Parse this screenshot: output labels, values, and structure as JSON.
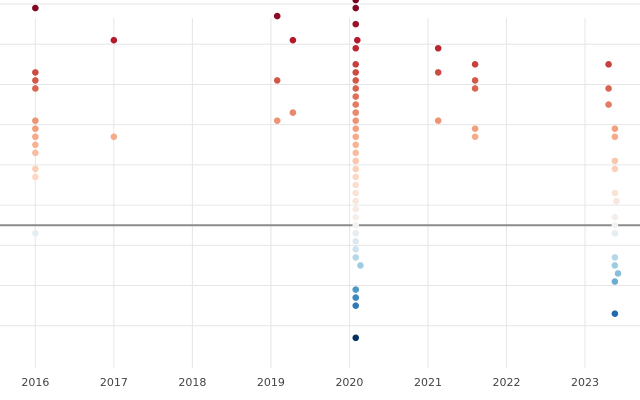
{
  "chart_data": {
    "type": "scatter",
    "title": "",
    "xlabel": "",
    "ylabel": "",
    "xlim": [
      2015.55,
      2023.7
    ],
    "ylim": [
      -3.6,
      5.6
    ],
    "x_ticks": [
      2016,
      2017,
      2018,
      2019,
      2020,
      2021,
      2022,
      2023
    ],
    "x_tick_labels": [
      "2016",
      "2017",
      "2018",
      "2019",
      "2020",
      "2021",
      "2022",
      "2023"
    ],
    "y_gridlines": [
      -2.5,
      -1.5,
      -0.5,
      0.5,
      1.5,
      2.5,
      3.5,
      4.5,
      5.5
    ],
    "reference_line_y": 0,
    "grid": true,
    "legend": "none",
    "color_scale": {
      "type": "diverging",
      "domain": [
        -2.8,
        0,
        5.8
      ],
      "negative_colors": [
        "#f2f2f2",
        "#d1e5f0",
        "#92c5de",
        "#4393c3",
        "#2166ac",
        "#053061"
      ],
      "positive_colors": [
        "#f2f2f2",
        "#fddbc7",
        "#f4a582",
        "#d6604d",
        "#b2182b",
        "#67001f"
      ]
    },
    "points": [
      {
        "x": 2016.0,
        "y": 5.8
      },
      {
        "x": 2016.0,
        "y": 5.4
      },
      {
        "x": 2016.0,
        "y": 3.8
      },
      {
        "x": 2016.0,
        "y": 3.6
      },
      {
        "x": 2016.0,
        "y": 3.4
      },
      {
        "x": 2016.0,
        "y": 2.6
      },
      {
        "x": 2016.0,
        "y": 2.4
      },
      {
        "x": 2016.0,
        "y": 2.2
      },
      {
        "x": 2016.0,
        "y": 2.0
      },
      {
        "x": 2016.0,
        "y": 1.8
      },
      {
        "x": 2016.0,
        "y": 1.4
      },
      {
        "x": 2016.0,
        "y": 1.2
      },
      {
        "x": 2016.0,
        "y": -0.2
      },
      {
        "x": 2017.0,
        "y": 4.6
      },
      {
        "x": 2017.0,
        "y": 2.2
      },
      {
        "x": 2019.08,
        "y": 5.2
      },
      {
        "x": 2019.08,
        "y": 3.6
      },
      {
        "x": 2019.08,
        "y": 2.6
      },
      {
        "x": 2019.28,
        "y": 4.6
      },
      {
        "x": 2019.28,
        "y": 2.8
      },
      {
        "x": 2020.08,
        "y": 5.6
      },
      {
        "x": 2020.08,
        "y": 5.4
      },
      {
        "x": 2020.08,
        "y": 5.0
      },
      {
        "x": 2020.1,
        "y": 4.6
      },
      {
        "x": 2020.08,
        "y": 4.4
      },
      {
        "x": 2020.08,
        "y": 4.0
      },
      {
        "x": 2020.08,
        "y": 3.8
      },
      {
        "x": 2020.08,
        "y": 3.6
      },
      {
        "x": 2020.08,
        "y": 3.4
      },
      {
        "x": 2020.08,
        "y": 3.2
      },
      {
        "x": 2020.08,
        "y": 3.0
      },
      {
        "x": 2020.08,
        "y": 2.8
      },
      {
        "x": 2020.08,
        "y": 2.6
      },
      {
        "x": 2020.08,
        "y": 2.4
      },
      {
        "x": 2020.08,
        "y": 2.2
      },
      {
        "x": 2020.08,
        "y": 2.0
      },
      {
        "x": 2020.08,
        "y": 1.8
      },
      {
        "x": 2020.08,
        "y": 1.6
      },
      {
        "x": 2020.08,
        "y": 1.4
      },
      {
        "x": 2020.08,
        "y": 1.2
      },
      {
        "x": 2020.08,
        "y": 1.0
      },
      {
        "x": 2020.08,
        "y": 0.8
      },
      {
        "x": 2020.08,
        "y": 0.6
      },
      {
        "x": 2020.08,
        "y": 0.4
      },
      {
        "x": 2020.08,
        "y": 0.2
      },
      {
        "x": 2020.08,
        "y": 0.0
      },
      {
        "x": 2020.08,
        "y": -0.2
      },
      {
        "x": 2020.08,
        "y": -0.4
      },
      {
        "x": 2020.08,
        "y": -0.6
      },
      {
        "x": 2020.08,
        "y": -0.8
      },
      {
        "x": 2020.14,
        "y": -1.0
      },
      {
        "x": 2020.08,
        "y": -1.6
      },
      {
        "x": 2020.08,
        "y": -1.8
      },
      {
        "x": 2020.08,
        "y": -2.0
      },
      {
        "x": 2020.08,
        "y": -2.8
      },
      {
        "x": 2021.13,
        "y": 4.4
      },
      {
        "x": 2021.13,
        "y": 3.8
      },
      {
        "x": 2021.13,
        "y": 2.6
      },
      {
        "x": 2021.6,
        "y": 4.0
      },
      {
        "x": 2021.6,
        "y": 3.6
      },
      {
        "x": 2021.6,
        "y": 3.4
      },
      {
        "x": 2021.6,
        "y": 2.4
      },
      {
        "x": 2021.6,
        "y": 2.2
      },
      {
        "x": 2023.3,
        "y": 4.0
      },
      {
        "x": 2023.3,
        "y": 3.4
      },
      {
        "x": 2023.3,
        "y": 3.0
      },
      {
        "x": 2023.38,
        "y": 2.4
      },
      {
        "x": 2023.38,
        "y": 2.2
      },
      {
        "x": 2023.38,
        "y": 1.6
      },
      {
        "x": 2023.38,
        "y": 1.4
      },
      {
        "x": 2023.38,
        "y": 0.8
      },
      {
        "x": 2023.4,
        "y": 0.6
      },
      {
        "x": 2023.38,
        "y": 0.2
      },
      {
        "x": 2023.38,
        "y": 0.0
      },
      {
        "x": 2023.38,
        "y": -0.2
      },
      {
        "x": 2023.38,
        "y": -0.8
      },
      {
        "x": 2023.38,
        "y": -1.0
      },
      {
        "x": 2023.42,
        "y": -1.2
      },
      {
        "x": 2023.38,
        "y": -1.4
      },
      {
        "x": 2023.38,
        "y": -2.2
      }
    ]
  }
}
